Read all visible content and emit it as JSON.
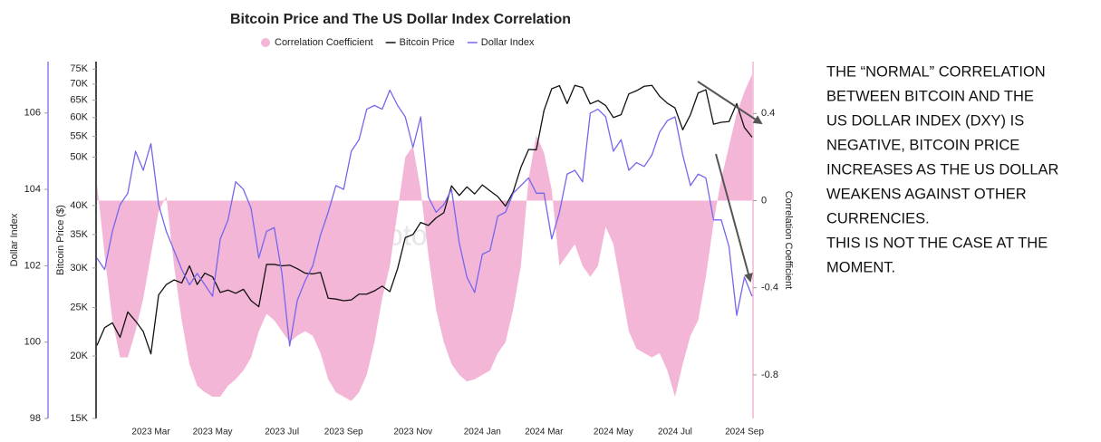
{
  "chart_data": {
    "type": "line",
    "title": "Bitcoin Price and The US Dollar Index Correlation",
    "watermark": "CryptoQuant",
    "categories": [
      null,
      null,
      null,
      null,
      null,
      null,
      null,
      "2023 Mar",
      null,
      null,
      null,
      null,
      null,
      null,
      null,
      "2023 May",
      null,
      null,
      null,
      null,
      null,
      null,
      null,
      null,
      "2023 Jul",
      null,
      null,
      null,
      null,
      null,
      null,
      null,
      "2023 Sep",
      null,
      null,
      null,
      null,
      null,
      null,
      null,
      null,
      "2023 Nov",
      null,
      null,
      null,
      null,
      null,
      null,
      null,
      null,
      "2024 Jan",
      null,
      null,
      null,
      null,
      null,
      null,
      null,
      "2024 Mar",
      null,
      null,
      null,
      null,
      null,
      null,
      null,
      null,
      "2024 May",
      null,
      null,
      null,
      null,
      null,
      null,
      null,
      "2024 Jul",
      null,
      null,
      null,
      null,
      null,
      null,
      null,
      null,
      "2024 Sep",
      null
    ],
    "ylabel": "Bitcoin Price ($)",
    "y_log": true,
    "ylim": [
      15000,
      77000
    ],
    "yticks": [
      {
        "value": 15000,
        "label": "15K"
      },
      {
        "value": 20000,
        "label": "20K"
      },
      {
        "value": 25000,
        "label": "25K"
      },
      {
        "value": 30000,
        "label": "30K"
      },
      {
        "value": 35000,
        "label": "35K"
      },
      {
        "value": 40000,
        "label": "40K"
      },
      {
        "value": 50000,
        "label": "50K"
      },
      {
        "value": 55000,
        "label": "55K"
      },
      {
        "value": 60000,
        "label": "60K"
      },
      {
        "value": 65000,
        "label": "65K"
      },
      {
        "value": 70000,
        "label": "70K"
      },
      {
        "value": 75000,
        "label": "75K"
      }
    ],
    "y2label": "Correlation Coefficient",
    "y2lim": [
      -1.0,
      0.63
    ],
    "y2ticks": [
      -0.8,
      -0.4,
      0,
      0.4
    ],
    "y3label": "Dollar Index",
    "y3lim": [
      98,
      107.3
    ],
    "y3ticks": [
      98,
      100,
      102,
      104,
      106
    ],
    "grid": false,
    "legend": "top",
    "series": [
      {
        "name": "Correlation Coefficient",
        "color": "#f4b6d6",
        "style": "area",
        "axis": "y2",
        "values": [
          0.08,
          -0.25,
          -0.55,
          -0.72,
          -0.72,
          -0.6,
          -0.45,
          -0.25,
          -0.05,
          0.02,
          -0.3,
          -0.55,
          -0.75,
          -0.85,
          -0.88,
          -0.9,
          -0.9,
          -0.85,
          -0.82,
          -0.78,
          -0.72,
          -0.6,
          -0.52,
          -0.55,
          -0.6,
          -0.65,
          -0.62,
          -0.6,
          -0.62,
          -0.7,
          -0.82,
          -0.88,
          -0.9,
          -0.92,
          -0.88,
          -0.8,
          -0.65,
          -0.45,
          -0.3,
          -0.05,
          0.2,
          0.25,
          0.05,
          -0.25,
          -0.5,
          -0.65,
          -0.75,
          -0.8,
          -0.83,
          -0.82,
          -0.8,
          -0.78,
          -0.7,
          -0.65,
          -0.5,
          -0.3,
          0.1,
          0.3,
          0.22,
          0.05,
          -0.3,
          -0.25,
          -0.2,
          -0.3,
          -0.35,
          -0.3,
          -0.12,
          -0.2,
          -0.4,
          -0.6,
          -0.68,
          -0.7,
          -0.72,
          -0.7,
          -0.78,
          -0.9,
          -0.75,
          -0.62,
          -0.55,
          -0.35,
          -0.1,
          0.1,
          0.25,
          0.4,
          0.5,
          0.58
        ]
      },
      {
        "name": "Bitcoin Price",
        "color": "#111111",
        "style": "line",
        "axis": "y",
        "values": [
          21000,
          22800,
          23300,
          21800,
          24500,
          23500,
          22400,
          20200,
          26500,
          27800,
          28400,
          28000,
          30300,
          27800,
          29300,
          28800,
          26800,
          27100,
          26700,
          27200,
          25800,
          25100,
          30500,
          30500,
          30300,
          30400,
          29900,
          29300,
          29200,
          29400,
          26100,
          26000,
          25800,
          25900,
          26600,
          26600,
          27000,
          27600,
          26900,
          29900,
          34500,
          35000,
          37000,
          36500,
          37800,
          38700,
          43800,
          41900,
          43600,
          42200,
          44000,
          42800,
          41700,
          39900,
          42600,
          47700,
          51800,
          51700,
          62000,
          68500,
          69500,
          64000,
          69600,
          68900,
          63900,
          64900,
          63400,
          60000,
          60800,
          66900,
          67900,
          69300,
          69600,
          66200,
          64100,
          62700,
          56700,
          60800,
          67200,
          68200,
          58200,
          58700,
          58900,
          64000,
          57300,
          54800
        ]
      },
      {
        "name": "Dollar Index",
        "color": "#7566ee",
        "style": "line",
        "axis": "y3",
        "values": [
          102.2,
          101.9,
          102.9,
          103.6,
          103.9,
          105.0,
          104.5,
          105.2,
          103.6,
          102.9,
          102.4,
          101.9,
          101.5,
          101.8,
          101.5,
          101.2,
          102.7,
          103.2,
          104.2,
          104.0,
          103.5,
          102.2,
          102.9,
          103.0,
          101.8,
          99.9,
          101.1,
          101.6,
          102.0,
          102.8,
          103.4,
          104.1,
          104.0,
          105.0,
          105.3,
          106.1,
          106.2,
          106.1,
          106.6,
          106.2,
          105.9,
          105.1,
          105.9,
          103.8,
          103.4,
          103.6,
          104.0,
          102.6,
          101.7,
          101.3,
          102.3,
          102.4,
          103.3,
          103.4,
          103.9,
          104.1,
          104.3,
          103.9,
          103.9,
          102.7,
          103.4,
          104.4,
          104.5,
          104.2,
          106.0,
          106.1,
          105.9,
          105.0,
          105.3,
          104.5,
          104.7,
          104.6,
          104.9,
          105.5,
          105.8,
          105.9,
          104.9,
          104.1,
          104.4,
          104.3,
          103.2,
          103.2,
          102.5,
          100.7,
          101.7,
          101.2
        ]
      }
    ]
  },
  "annotation": {
    "lines": [
      "THE “NORMAL” CORRELATION",
      "BETWEEN BITCOIN AND THE",
      "US DOLLAR INDEX (DXY) IS",
      "NEGATIVE, BITCOIN PRICE",
      "INCREASES AS THE US DOLLAR",
      "WEAKENS AGAINST OTHER",
      "CURRENCIES.",
      "THIS IS NOT THE CASE AT THE",
      "MOMENT."
    ]
  }
}
